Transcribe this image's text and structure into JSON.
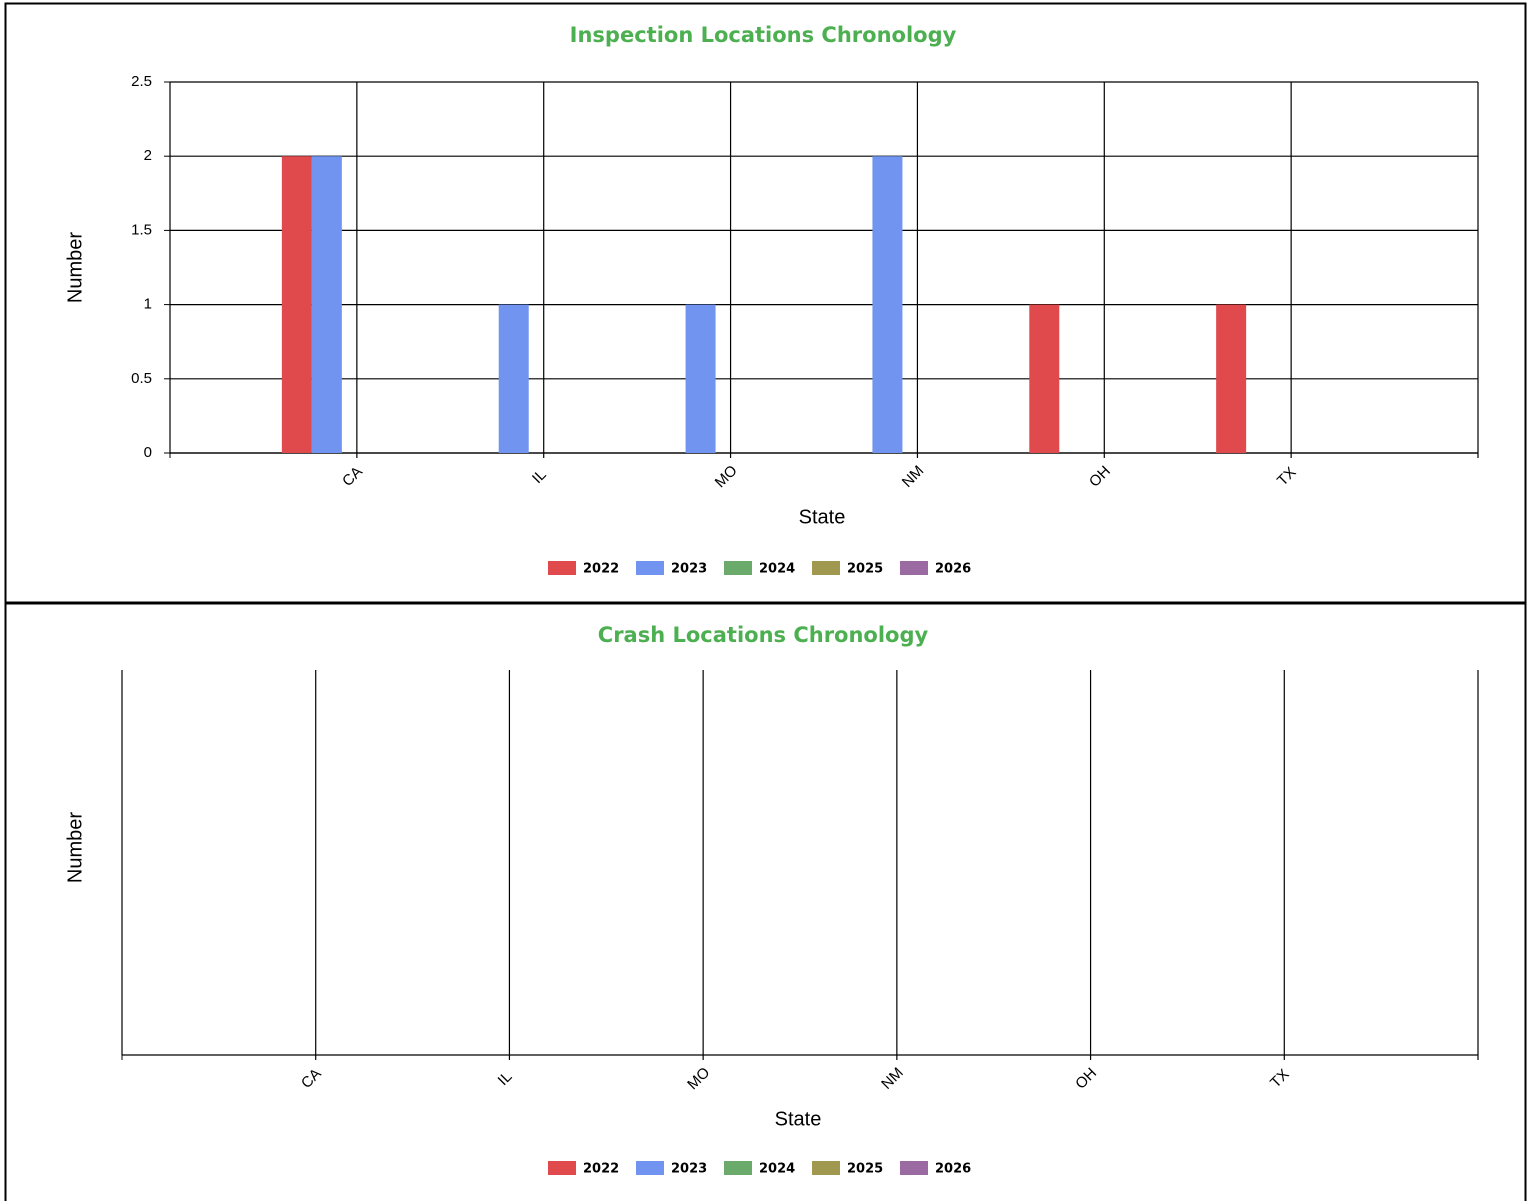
{
  "chart_data": [
    {
      "type": "bar",
      "title": "Inspection Locations Chronology",
      "x_label": "State",
      "y_label": "Number",
      "categories": [
        "CA",
        "IL",
        "MO",
        "NM",
        "OH",
        "TX"
      ],
      "series": [
        {
          "name": "2022",
          "color": "#e04a4d",
          "values": [
            2,
            0,
            0,
            0,
            1,
            1
          ]
        },
        {
          "name": "2023",
          "color": "#7094f0",
          "values": [
            2,
            1,
            1,
            2,
            0,
            0
          ]
        },
        {
          "name": "2024",
          "color": "#6aaa6a",
          "values": [
            0,
            0,
            0,
            0,
            0,
            0
          ]
        },
        {
          "name": "2025",
          "color": "#a0984e",
          "values": [
            0,
            0,
            0,
            0,
            0,
            0
          ]
        },
        {
          "name": "2026",
          "color": "#9b6aa3",
          "values": [
            0,
            0,
            0,
            0,
            0,
            0
          ]
        }
      ],
      "ylim": [
        0,
        2.5
      ],
      "yticks": [
        0,
        0.5,
        1,
        1.5,
        2,
        2.5
      ],
      "grid": true
    },
    {
      "type": "bar",
      "title": "Crash Locations Chronology",
      "x_label": "State",
      "y_label": "Number",
      "categories": [
        "CA",
        "IL",
        "MO",
        "NM",
        "OH",
        "TX"
      ],
      "series": [
        {
          "name": "2022",
          "color": "#e04a4d"
        },
        {
          "name": "2023",
          "color": "#7094f0"
        },
        {
          "name": "2024",
          "color": "#6aaa6a"
        },
        {
          "name": "2025",
          "color": "#a0984e"
        },
        {
          "name": "2026",
          "color": "#9b6aa3"
        }
      ]
    }
  ]
}
